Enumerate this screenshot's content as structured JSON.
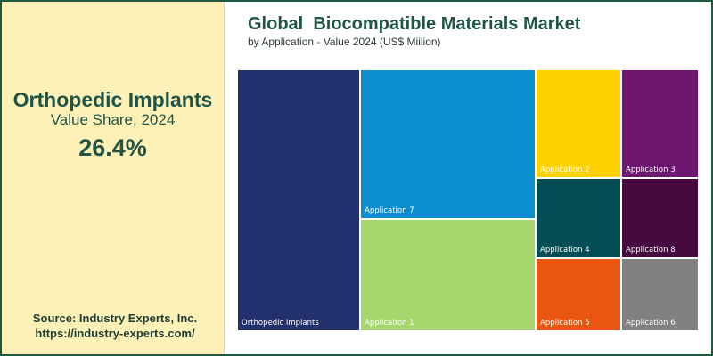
{
  "highlight": {
    "segment": "Orthopedic Implants",
    "metric": "Value Share, 2024",
    "value": "26.4%"
  },
  "source": {
    "line1": "Source: Industry Experts, Inc.",
    "line2": "https://industry-experts.com/"
  },
  "chart_data": {
    "type": "treemap",
    "title": "Global  Biocompatible Materials Market",
    "subtitle": "by Application - Value 2024 (US$ Miilion)",
    "items": [
      {
        "label": "Orthopedic Implants",
        "share": 26.4,
        "color": "#22306e"
      },
      {
        "label": "Application 7",
        "share": 21.3,
        "color": "#0a8ed0"
      },
      {
        "label": "Application 1",
        "share": 15.8,
        "color": "#a5d76c"
      },
      {
        "label": "Application 2",
        "share": 7.7,
        "color": "#fdd200"
      },
      {
        "label": "Application 3",
        "share": 7.6,
        "color": "#6e1770"
      },
      {
        "label": "Application 4",
        "share": 5.7,
        "color": "#054d55"
      },
      {
        "label": "Application 8",
        "share": 5.6,
        "color": "#470a40"
      },
      {
        "label": "Application 5",
        "share": 5.1,
        "color": "#e8560f"
      },
      {
        "label": "Application 6",
        "share": 5.0,
        "color": "#818181"
      }
    ]
  }
}
